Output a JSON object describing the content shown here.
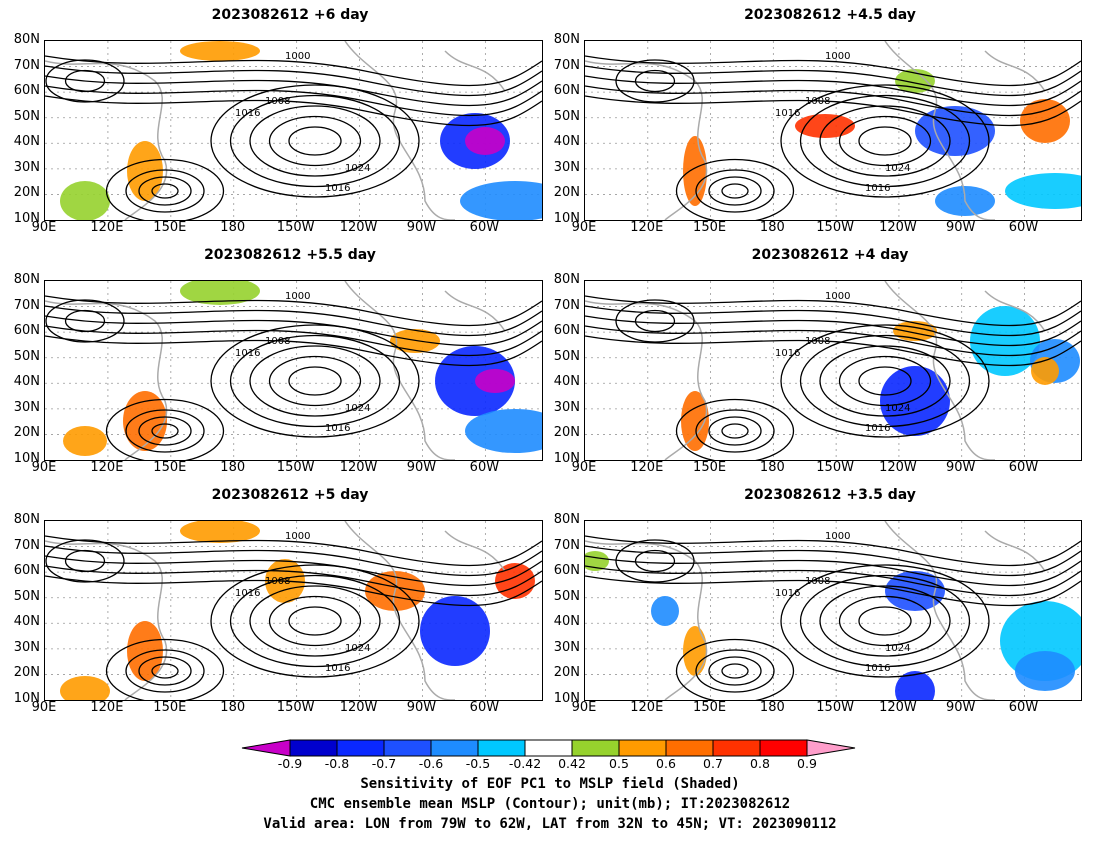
{
  "panels": [
    {
      "title": "2023082612  +6  day"
    },
    {
      "title": "2023082612  +4.5  day"
    },
    {
      "title": "2023082612  +5.5  day"
    },
    {
      "title": "2023082612  +4  day"
    },
    {
      "title": "2023082612  +5  day"
    },
    {
      "title": "2023082612  +3.5  day"
    }
  ],
  "axes": {
    "lat_labels": [
      "80N",
      "70N",
      "60N",
      "50N",
      "40N",
      "30N",
      "20N",
      "10N"
    ],
    "lon_labels": [
      "90E",
      "120E",
      "150E",
      "180",
      "150W",
      "120W",
      "90W",
      "60W"
    ]
  },
  "contour_labels": [
    "1000",
    "1008",
    "1016",
    "1024"
  ],
  "colorbar": {
    "ticks": [
      "-0.9",
      "-0.8",
      "-0.7",
      "-0.6",
      "-0.5",
      "-0.42",
      "0.42",
      "0.5",
      "0.6",
      "0.7",
      "0.8",
      "0.9"
    ],
    "colors": [
      "#c800c8",
      "#0000cd",
      "#0a28ff",
      "#1e50ff",
      "#1e8cff",
      "#00c8ff",
      "#ffffff",
      "#96d22d",
      "#ff9b00",
      "#ff6e00",
      "#ff3200",
      "#ff0000",
      "#ff9ecb"
    ]
  },
  "caption": {
    "line1": "Sensitivity of EOF PC1 to MSLP field (Shaded)",
    "line2": "CMC ensemble mean MSLP (Contour); unit(mb); IT:2023082612",
    "line3": "Valid area: LON from 79W to 62W, LAT from 32N to 45N; VT: 2023090112"
  }
}
